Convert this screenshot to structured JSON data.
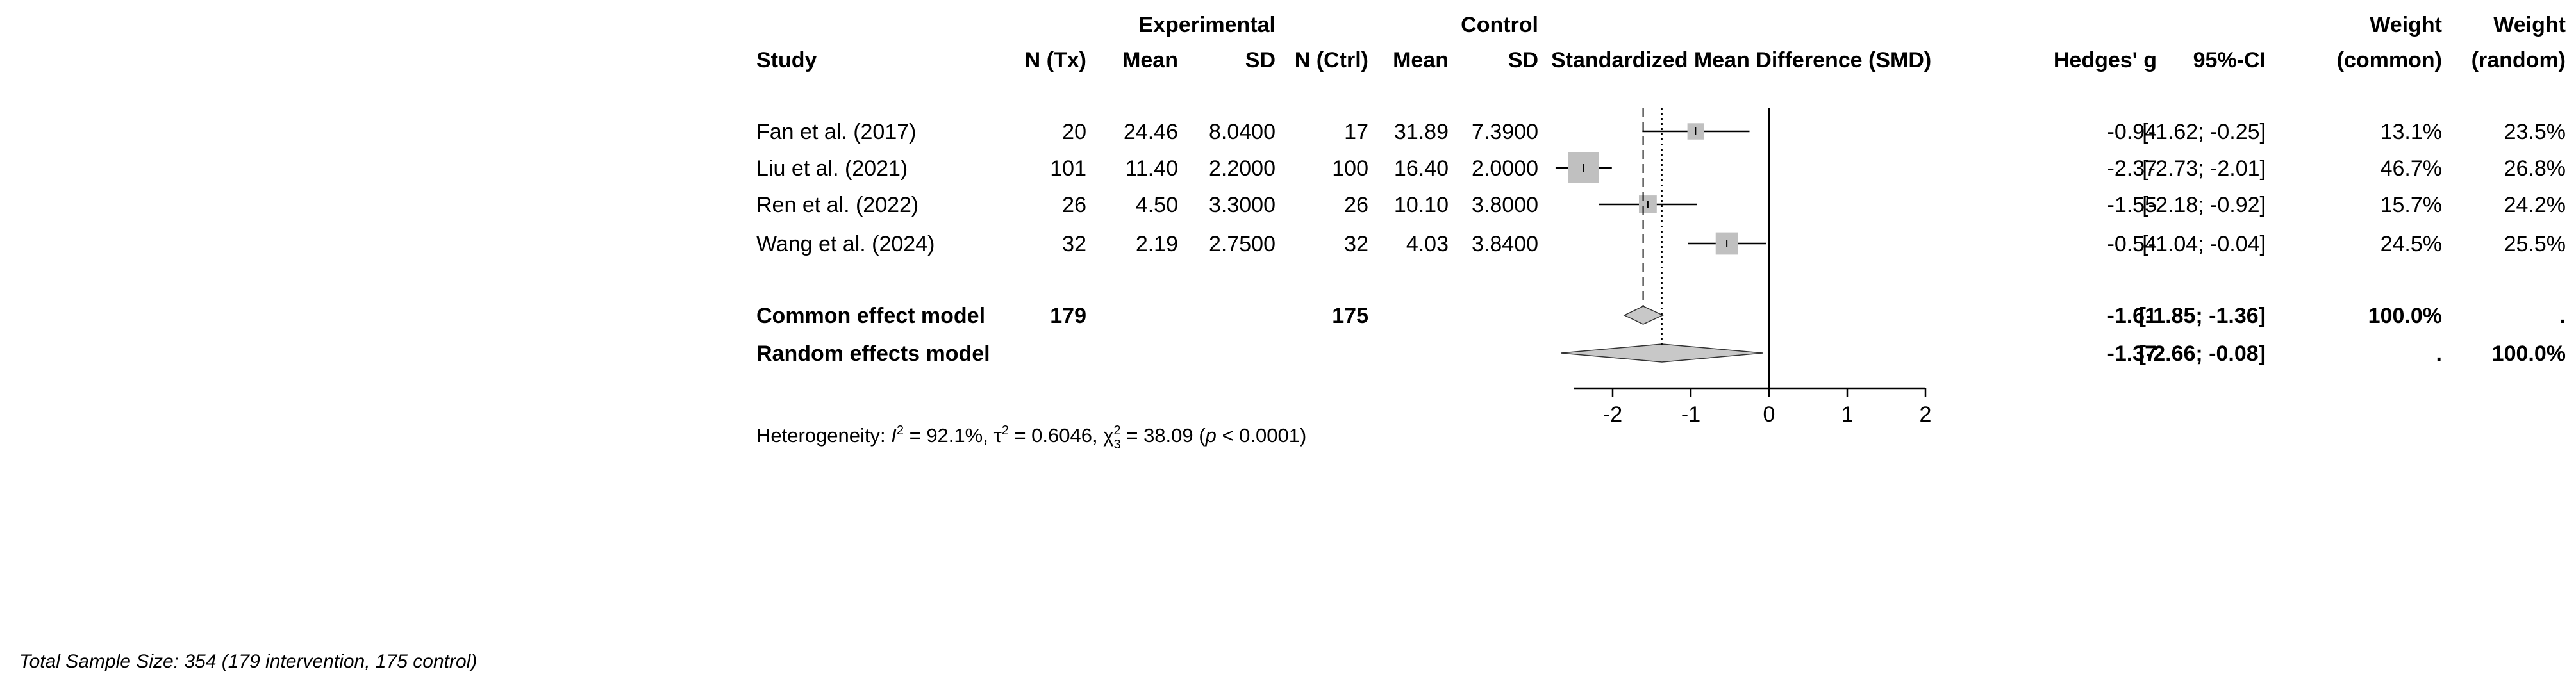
{
  "chart_data": {
    "type": "forest",
    "group_headers": {
      "experimental": "Experimental",
      "control": "Control",
      "weight_common": "Weight",
      "weight_random": "Weight"
    },
    "column_headers": {
      "study": "Study",
      "n_tx": "N (Tx)",
      "mean_tx": "Mean",
      "sd_tx": "SD",
      "n_ctrl": "N (Ctrl)",
      "mean_ctrl": "Mean",
      "sd_ctrl": "SD",
      "plot": "Standardized Mean Difference (SMD)",
      "effect": "Hedges' g",
      "ci": "95%-CI",
      "w_common": "(common)",
      "w_random": "(random)"
    },
    "studies": [
      {
        "name": "Fan et al. (2017)",
        "n_tx": "20",
        "mean_tx": "24.46",
        "sd_tx": "8.0400",
        "n_ctrl": "17",
        "mean_ctrl": "31.89",
        "sd_ctrl": "7.3900",
        "g": -0.94,
        "lo": -1.62,
        "hi": -0.25,
        "g_text": "-0.94",
        "ci_text": "[-1.62; -0.25]",
        "w_common": "13.1%",
        "w_random": "23.5%",
        "w_common_value": 13.1
      },
      {
        "name": "Liu et al. (2021)",
        "n_tx": "101",
        "mean_tx": "11.40",
        "sd_tx": "2.2000",
        "n_ctrl": "100",
        "mean_ctrl": "16.40",
        "sd_ctrl": "2.0000",
        "g": -2.37,
        "lo": -2.73,
        "hi": -2.01,
        "g_text": "-2.37",
        "ci_text": "[-2.73; -2.01]",
        "w_common": "46.7%",
        "w_random": "26.8%",
        "w_common_value": 46.7
      },
      {
        "name": "Ren et al. (2022)",
        "n_tx": "26",
        "mean_tx": "4.50",
        "sd_tx": "3.3000",
        "n_ctrl": "26",
        "mean_ctrl": "10.10",
        "sd_ctrl": "3.8000",
        "g": -1.55,
        "lo": -2.18,
        "hi": -0.92,
        "g_text": "-1.55",
        "ci_text": "[-2.18; -0.92]",
        "w_common": "15.7%",
        "w_random": "24.2%",
        "w_common_value": 15.7
      },
      {
        "name": "Wang et al. (2024)",
        "n_tx": "32",
        "mean_tx": "2.19",
        "sd_tx": "2.7500",
        "n_ctrl": "32",
        "mean_ctrl": "4.03",
        "sd_ctrl": "3.8400",
        "g": -0.54,
        "lo": -1.04,
        "hi": -0.04,
        "g_text": "-0.54",
        "ci_text": "[-1.04; -0.04]",
        "w_common": "24.5%",
        "w_random": "25.5%",
        "w_common_value": 24.5
      }
    ],
    "common": {
      "label": "Common effect model",
      "n_tx": "179",
      "n_ctrl": "175",
      "g": -1.61,
      "lo": -1.85,
      "hi": -1.36,
      "g_text": "-1.61",
      "ci_text": "[-1.85; -1.36]",
      "w_common": "100.0%",
      "w_random": "."
    },
    "random": {
      "label": "Random effects model",
      "g": -1.37,
      "lo": -2.66,
      "hi": -0.08,
      "g_text": "-1.37",
      "ci_text": "[-2.66; -0.08]",
      "w_common": ".",
      "w_random": "100.0%"
    },
    "heterogeneity": {
      "prefix": "Heterogeneity: ",
      "I2_symbol": "I",
      "I2_value": " = 92.1%, ",
      "tau2": "τ",
      "tau2_value": " = 0.6046, ",
      "chi2": "χ",
      "chi2_sub": "3",
      "chi2_value": " = 38.09 (",
      "p_symbol": "p",
      "p_value": " < 0.0001)"
    },
    "axis": {
      "ticks": [
        -2,
        -1,
        0,
        1,
        2
      ],
      "tick_labels": [
        "-2",
        "-1",
        "0",
        "1",
        "2"
      ],
      "xlim": [
        -2.5,
        2
      ]
    },
    "null_line": 0,
    "marker_color": "#c0c0c0",
    "diamond_color": "#c8c8c8"
  },
  "footer": {
    "total_sample": "Total Sample Size: 354 (179 intervention, 175 control)"
  }
}
